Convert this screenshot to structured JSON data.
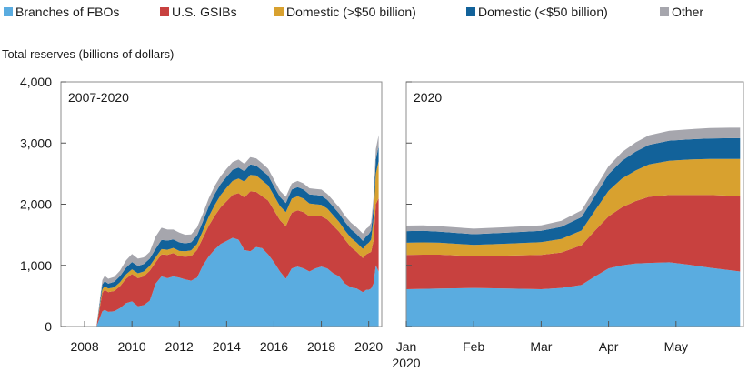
{
  "legend": [
    {
      "label": "Branches of FBOs",
      "color": "#5aace0"
    },
    {
      "label": "U.S. GSIBs",
      "color": "#c8413f"
    },
    {
      "label": "Domestic (>$50 billion)",
      "color": "#d8a12f"
    },
    {
      "label": "Domestic (<$50 billion)",
      "color": "#12629a"
    },
    {
      "label": "Other",
      "color": "#a6a6ad"
    }
  ],
  "ylabel": "Total reserves (billions of dollars)",
  "chart_data": [
    {
      "type": "area",
      "stacked": true,
      "title": "2007-2020",
      "ylabel": "Total reserves (billions of dollars)",
      "xlim": [
        2007.0,
        2020.55
      ],
      "ylim": [
        0,
        4000
      ],
      "yticks": [
        0,
        1000,
        2000,
        3000,
        4000
      ],
      "ytick_labels": [
        "0",
        "1,000",
        "2,000",
        "3,000",
        "4,000"
      ],
      "xticks": [
        2008,
        2010,
        2012,
        2014,
        2016,
        2018,
        2020
      ],
      "xtick_labels": [
        "2008",
        "2010",
        "2012",
        "2014",
        "2016",
        "2018",
        "2020"
      ],
      "grid": false,
      "x": [
        2007.0,
        2008.5,
        2008.75,
        2008.85,
        2009.0,
        2009.25,
        2009.5,
        2009.75,
        2010.0,
        2010.25,
        2010.5,
        2010.75,
        2011.0,
        2011.25,
        2011.5,
        2011.75,
        2012.0,
        2012.25,
        2012.5,
        2012.75,
        2013.0,
        2013.25,
        2013.5,
        2013.75,
        2014.0,
        2014.25,
        2014.5,
        2014.75,
        2015.0,
        2015.25,
        2015.5,
        2015.75,
        2016.0,
        2016.25,
        2016.5,
        2016.75,
        2017.0,
        2017.25,
        2017.5,
        2017.75,
        2018.0,
        2018.25,
        2018.5,
        2018.75,
        2019.0,
        2019.25,
        2019.5,
        2019.75,
        2019.9,
        2020.0,
        2020.1,
        2020.2,
        2020.3,
        2020.42
      ],
      "series": [
        {
          "name": "Branches of FBOs",
          "color": "#5aace0",
          "values": [
            0,
            0,
            250,
            270,
            240,
            250,
            300,
            380,
            410,
            330,
            350,
            420,
            700,
            820,
            790,
            820,
            800,
            770,
            750,
            800,
            1000,
            1150,
            1260,
            1350,
            1400,
            1450,
            1420,
            1250,
            1230,
            1300,
            1280,
            1180,
            1050,
            900,
            780,
            950,
            980,
            950,
            900,
            950,
            980,
            950,
            870,
            820,
            700,
            640,
            620,
            560,
            600,
            600,
            620,
            700,
            1000,
            900
          ]
        },
        {
          "name": "U.S. GSIBs",
          "color": "#c8413f",
          "values": [
            0,
            0,
            300,
            330,
            320,
            330,
            360,
            400,
            450,
            460,
            470,
            490,
            350,
            360,
            380,
            380,
            350,
            370,
            400,
            450,
            450,
            500,
            550,
            600,
            650,
            700,
            760,
            860,
            980,
            900,
            850,
            880,
            850,
            840,
            860,
            910,
            920,
            920,
            900,
            850,
            820,
            800,
            780,
            730,
            720,
            660,
            600,
            560,
            580,
            600,
            600,
            700,
            1000,
            1200
          ]
        },
        {
          "name": "Domestic (>$50 billion)",
          "color": "#d8a12f",
          "values": [
            0,
            0,
            60,
            60,
            60,
            60,
            65,
            70,
            75,
            80,
            80,
            80,
            80,
            85,
            85,
            85,
            85,
            90,
            95,
            100,
            120,
            150,
            180,
            200,
            220,
            230,
            240,
            260,
            270,
            270,
            260,
            250,
            240,
            230,
            230,
            230,
            230,
            220,
            210,
            200,
            190,
            180,
            170,
            160,
            150,
            150,
            150,
            150,
            160,
            170,
            200,
            350,
            500,
            600
          ]
        },
        {
          "name": "Domestic (<$50 billion)",
          "color": "#12629a",
          "values": [
            0,
            0,
            80,
            80,
            80,
            90,
            100,
            110,
            120,
            120,
            120,
            120,
            140,
            150,
            150,
            140,
            140,
            130,
            130,
            140,
            150,
            170,
            180,
            180,
            180,
            180,
            180,
            170,
            170,
            160,
            160,
            160,
            150,
            150,
            150,
            150,
            150,
            150,
            150,
            150,
            150,
            140,
            140,
            140,
            140,
            140,
            140,
            130,
            140,
            140,
            150,
            200,
            230,
            250
          ]
        },
        {
          "name": "Other",
          "color": "#a6a6ad",
          "values": [
            0,
            0,
            70,
            90,
            80,
            80,
            90,
            120,
            130,
            120,
            110,
            110,
            200,
            200,
            180,
            160,
            160,
            140,
            130,
            130,
            130,
            130,
            130,
            130,
            130,
            130,
            130,
            120,
            120,
            120,
            120,
            110,
            110,
            100,
            100,
            100,
            100,
            100,
            100,
            100,
            100,
            100,
            100,
            100,
            100,
            110,
            110,
            120,
            120,
            120,
            130,
            150,
            170,
            180
          ]
        }
      ]
    },
    {
      "type": "area",
      "stacked": true,
      "title": "2020",
      "xlim": [
        0,
        5.0
      ],
      "ylim": [
        0,
        4000
      ],
      "yticks": [
        0,
        1000,
        2000,
        3000,
        4000
      ],
      "xticks": [
        0,
        1,
        2,
        3,
        4
      ],
      "xtick_labels": [
        "Jan\n2020",
        "Feb",
        "Mar",
        "Apr",
        "May"
      ],
      "grid": false,
      "x": [
        0,
        0.25,
        0.5,
        1.0,
        1.5,
        2.0,
        2.3,
        2.6,
        2.8,
        3.0,
        3.2,
        3.4,
        3.6,
        3.9,
        4.2,
        4.5,
        4.8,
        4.95
      ],
      "series": [
        {
          "name": "Branches of FBOs",
          "color": "#5aace0",
          "values": [
            610,
            615,
            620,
            630,
            620,
            610,
            630,
            680,
            820,
            950,
            1000,
            1030,
            1040,
            1050,
            1010,
            960,
            920,
            900
          ]
        },
        {
          "name": "U.S. GSIBs",
          "color": "#c8413f",
          "values": [
            560,
            560,
            555,
            520,
            540,
            560,
            580,
            650,
            750,
            850,
            950,
            1020,
            1080,
            1100,
            1140,
            1190,
            1220,
            1230
          ]
        },
        {
          "name": "Domestic (>$50 billion)",
          "color": "#d8a12f",
          "values": [
            200,
            200,
            195,
            185,
            195,
            210,
            220,
            240,
            330,
            420,
            470,
            500,
            530,
            560,
            580,
            590,
            600,
            610
          ]
        },
        {
          "name": "Domestic (<$50 billion)",
          "color": "#12629a",
          "values": [
            190,
            190,
            180,
            175,
            180,
            185,
            200,
            220,
            240,
            270,
            290,
            310,
            320,
            330,
            330,
            335,
            340,
            340
          ]
        },
        {
          "name": "Other",
          "color": "#a6a6ad",
          "values": [
            90,
            90,
            90,
            90,
            90,
            90,
            100,
            110,
            120,
            130,
            140,
            150,
            155,
            160,
            165,
            170,
            170,
            170
          ]
        }
      ]
    }
  ]
}
